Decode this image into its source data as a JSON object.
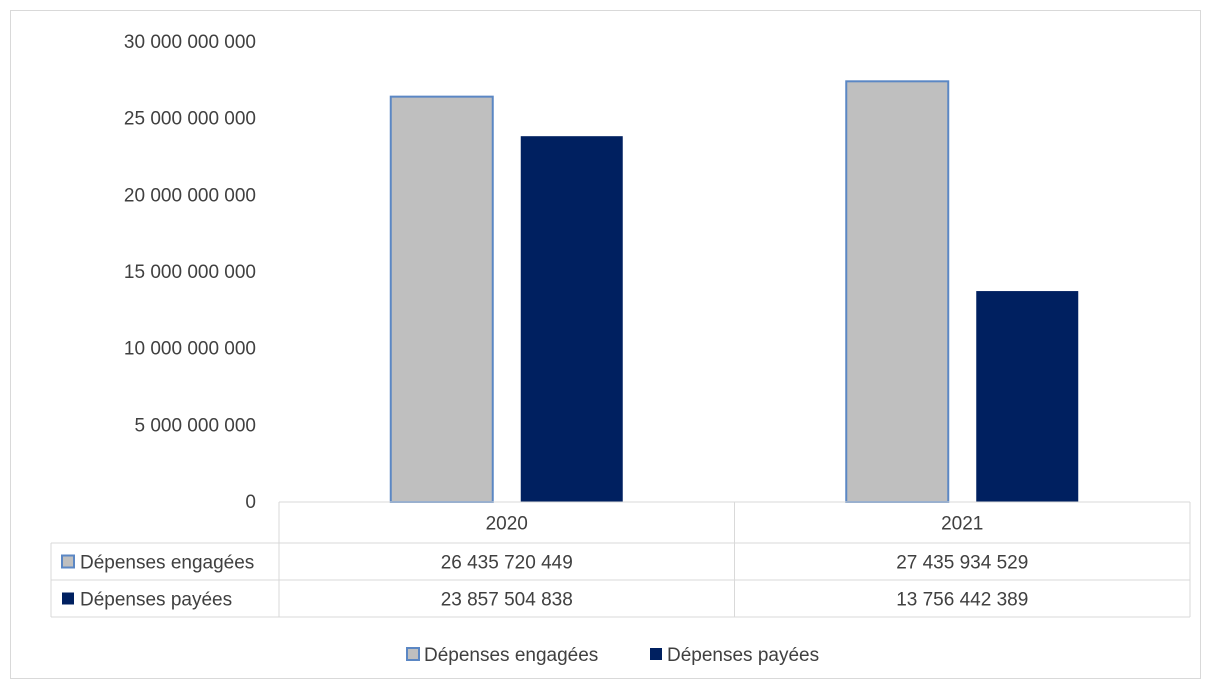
{
  "chart_data": {
    "type": "bar",
    "title": "",
    "xlabel": "",
    "ylabel": "",
    "categories": [
      "2020",
      "2021"
    ],
    "series": [
      {
        "name": "Dépenses engagées",
        "values": [
          26435720449,
          27435934529
        ],
        "value_labels": [
          "26 435 720 449",
          "27 435 934 529"
        ],
        "color": "#bfbfbf",
        "border_color": "#5b87c4"
      },
      {
        "name": "Dépenses payées",
        "values": [
          23857504838,
          13756442389
        ],
        "value_labels": [
          "23 857 504 838",
          "13 756 442 389"
        ],
        "color": "#002060",
        "border_color": "#002060"
      }
    ],
    "ylim": [
      0,
      30000000000
    ],
    "yticks": [
      0,
      5000000000,
      10000000000,
      15000000000,
      20000000000,
      25000000000,
      30000000000
    ],
    "ytick_labels": [
      "0",
      "5 000 000 000",
      "10 000 000 000",
      "15 000 000 000",
      "20 000 000 000",
      "25 000 000 000",
      "30 000 000 000"
    ],
    "grid": false,
    "data_table": true,
    "legend": "bottom"
  }
}
